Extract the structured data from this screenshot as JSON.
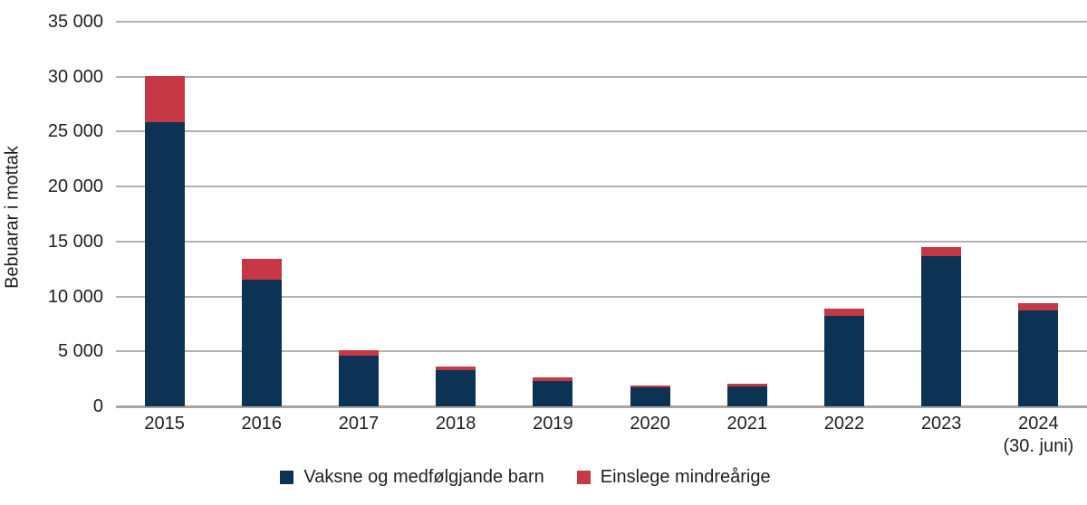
{
  "chart_data": {
    "type": "bar",
    "stacked": true,
    "title": "",
    "xlabel": "",
    "ylabel": "Bebuarar i mottak",
    "ylim": [
      0,
      35000
    ],
    "ytick_step": 5000,
    "ytick_labels": [
      "0",
      "5 000",
      "10 000",
      "15 000",
      "20 000",
      "25 000",
      "30 000",
      "35 000"
    ],
    "grid": true,
    "legend_position": "bottom",
    "categories": [
      {
        "label": "2015",
        "sublabel": ""
      },
      {
        "label": "2016",
        "sublabel": ""
      },
      {
        "label": "2017",
        "sublabel": ""
      },
      {
        "label": "2018",
        "sublabel": ""
      },
      {
        "label": "2019",
        "sublabel": ""
      },
      {
        "label": "2020",
        "sublabel": ""
      },
      {
        "label": "2021",
        "sublabel": ""
      },
      {
        "label": "2022",
        "sublabel": ""
      },
      {
        "label": "2023",
        "sublabel": ""
      },
      {
        "label": "2024",
        "sublabel": "(30. juni)"
      }
    ],
    "series": [
      {
        "name": "Vaksne og medfølgjande barn",
        "color": "#0d3354",
        "values": [
          25900,
          11500,
          4600,
          3300,
          2300,
          1700,
          1800,
          8200,
          13700,
          8700
        ]
      },
      {
        "name": "Einslege mindreårige",
        "color": "#c63845",
        "values": [
          4200,
          1900,
          500,
          300,
          300,
          200,
          300,
          700,
          800,
          700
        ]
      }
    ],
    "totals": [
      30100,
      13400,
      5100,
      3600,
      2600,
      1900,
      2100,
      8900,
      14500,
      9400
    ],
    "style": {
      "grid_color": "#b1b1b1",
      "axis_line_color": "#a6a6a6",
      "text_color": "#1f1f1f",
      "background": "#ffffff"
    }
  }
}
